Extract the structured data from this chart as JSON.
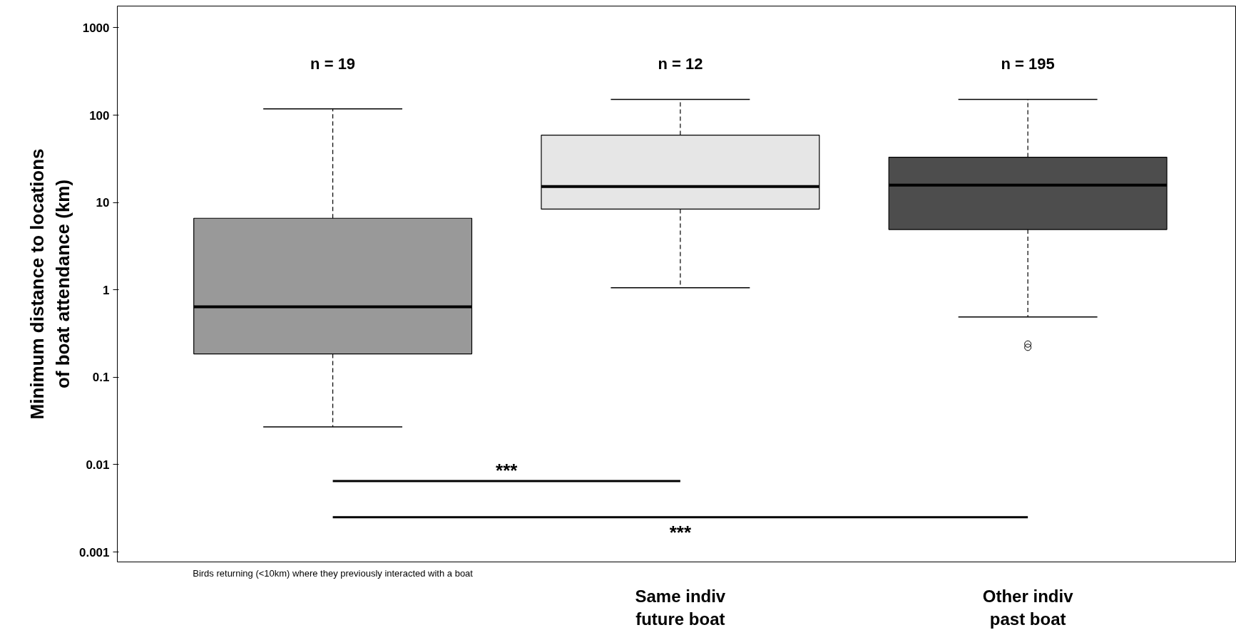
{
  "chart_data": {
    "type": "box",
    "ylabel": "Minimum distance to locations\nof boat attendance (km)",
    "categories": [
      "Birds returning (<10km) where they previously interacted with a boat",
      "Same indiv\nfuture boat",
      "Other indiv\npast boat"
    ],
    "boxes": [
      {
        "low": 0.027,
        "q1": 0.185,
        "median": 0.64,
        "q3": 6.6,
        "high": 118
      },
      {
        "low": 1.06,
        "q1": 8.4,
        "median": 15.2,
        "q3": 59,
        "high": 151
      },
      {
        "low": 0.49,
        "q1": 4.9,
        "median": 15.8,
        "q3": 33,
        "high": 151,
        "outliers": [
          0.24,
          0.22
        ]
      }
    ],
    "colors": [
      "#999999",
      "#e6e6e6",
      "#4d4d4d"
    ],
    "log": true,
    "ylim": [
      0.00077,
      1770
    ],
    "yticks": [
      0.001,
      0.01,
      0.1,
      1,
      10,
      100,
      1000
    ],
    "grid": false,
    "annotations": [
      "n = 19",
      "n = 12",
      "n = 195",
      "***",
      "***"
    ]
  }
}
